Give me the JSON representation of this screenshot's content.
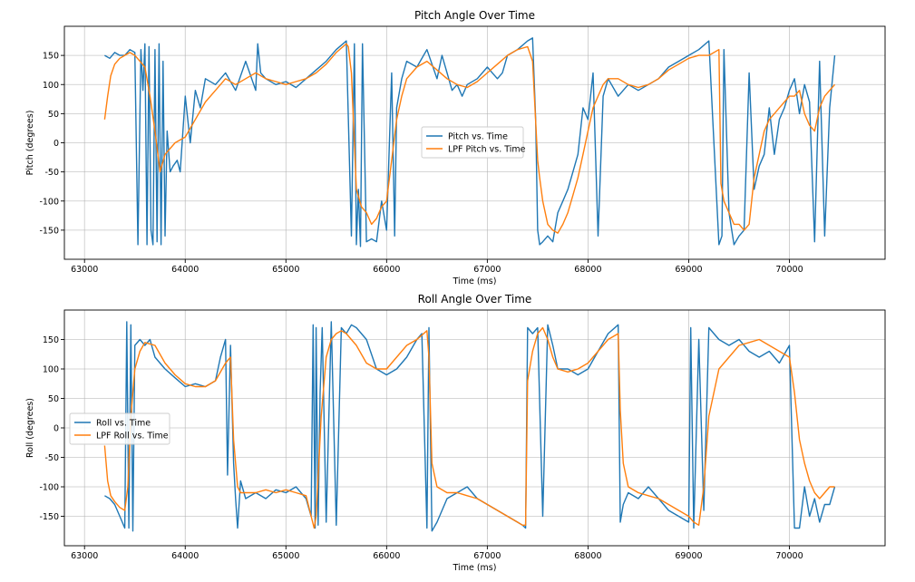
{
  "chart_data": [
    {
      "type": "line",
      "title": "Pitch Angle Over Time",
      "xlabel": "Time (ms)",
      "ylabel": "Pitch (degrees)",
      "xlim": [
        62800,
        70950
      ],
      "ylim": [
        -200,
        200
      ],
      "xticks": [
        63000,
        64000,
        65000,
        66000,
        67000,
        68000,
        69000,
        70000
      ],
      "yticks": [
        -150,
        -100,
        -50,
        0,
        50,
        100,
        150
      ],
      "grid": true,
      "legend": "center",
      "colors": {
        "raw": "#1f77b4",
        "lpf": "#ff7f0e"
      },
      "series": [
        {
          "name": "Pitch vs. Time",
          "x": [
            63200,
            63250,
            63300,
            63350,
            63400,
            63450,
            63500,
            63530,
            63560,
            63580,
            63600,
            63620,
            63640,
            63660,
            63680,
            63700,
            63720,
            63740,
            63760,
            63780,
            63800,
            63820,
            63850,
            63880,
            63920,
            63950,
            64000,
            64050,
            64100,
            64150,
            64200,
            64300,
            64400,
            64500,
            64600,
            64700,
            64720,
            64750,
            64800,
            64900,
            65000,
            65100,
            65200,
            65300,
            65400,
            65500,
            65600,
            65650,
            65680,
            65700,
            65720,
            65740,
            65760,
            65800,
            65850,
            65900,
            65950,
            66000,
            66050,
            66080,
            66100,
            66150,
            66200,
            66300,
            66400,
            66500,
            66550,
            66600,
            66650,
            66700,
            66750,
            66800,
            66900,
            67000,
            67050,
            67100,
            67150,
            67200,
            67300,
            67400,
            67450,
            67480,
            67500,
            67520,
            67550,
            67600,
            67650,
            67700,
            67750,
            67800,
            67850,
            67900,
            67950,
            68000,
            68050,
            68100,
            68150,
            68200,
            68300,
            68400,
            68500,
            68600,
            68700,
            68800,
            68900,
            69000,
            69100,
            69200,
            69300,
            69330,
            69350,
            69400,
            69450,
            69500,
            69550,
            69600,
            69650,
            69700,
            69750,
            69800,
            69850,
            69900,
            69950,
            70000,
            70050,
            70100,
            70150,
            70200,
            70250,
            70300,
            70350,
            70400,
            70450
          ],
          "y": [
            150,
            145,
            155,
            150,
            150,
            160,
            155,
            -175,
            160,
            90,
            170,
            -175,
            165,
            -150,
            -175,
            160,
            -170,
            170,
            -175,
            140,
            -160,
            20,
            -50,
            -40,
            -30,
            -50,
            80,
            0,
            90,
            60,
            110,
            100,
            120,
            90,
            140,
            90,
            170,
            120,
            110,
            100,
            105,
            95,
            110,
            125,
            140,
            160,
            175,
            -160,
            170,
            -175,
            -80,
            -178,
            170,
            -170,
            -165,
            -170,
            -100,
            -150,
            120,
            -160,
            60,
            110,
            140,
            130,
            160,
            110,
            150,
            120,
            90,
            100,
            80,
            100,
            110,
            130,
            120,
            110,
            120,
            150,
            160,
            175,
            180,
            40,
            -150,
            -175,
            -170,
            -160,
            -170,
            -120,
            -100,
            -80,
            -50,
            -20,
            60,
            40,
            120,
            -160,
            80,
            110,
            80,
            100,
            90,
            100,
            110,
            130,
            140,
            150,
            160,
            175,
            -175,
            -160,
            160,
            -120,
            -175,
            -160,
            -150,
            120,
            -80,
            -40,
            -20,
            60,
            -20,
            40,
            60,
            90,
            110,
            50,
            100,
            70,
            -170,
            140,
            -160,
            60,
            150
          ]
        },
        {
          "name": "LPF Pitch vs. Time",
          "x": [
            63200,
            63230,
            63260,
            63300,
            63350,
            63400,
            63450,
            63500,
            63550,
            63600,
            63650,
            63700,
            63750,
            63800,
            63900,
            64000,
            64100,
            64200,
            64300,
            64400,
            64500,
            64600,
            64700,
            64800,
            64900,
            65000,
            65100,
            65200,
            65300,
            65400,
            65500,
            65600,
            65620,
            65650,
            65700,
            65750,
            65800,
            65850,
            65900,
            65950,
            66000,
            66050,
            66100,
            66150,
            66200,
            66300,
            66400,
            66500,
            66600,
            66700,
            66800,
            66900,
            67000,
            67100,
            67200,
            67300,
            67400,
            67450,
            67500,
            67520,
            67550,
            67600,
            67650,
            67700,
            67750,
            67800,
            67850,
            67900,
            67950,
            68000,
            68050,
            68100,
            68150,
            68200,
            68300,
            68400,
            68500,
            68600,
            68700,
            68800,
            68900,
            69000,
            69100,
            69200,
            69300,
            69320,
            69350,
            69400,
            69450,
            69500,
            69550,
            69600,
            69650,
            69700,
            69750,
            69800,
            69850,
            69900,
            69950,
            70000,
            70050,
            70100,
            70150,
            70200,
            70250,
            70300,
            70350,
            70400,
            70450
          ],
          "y": [
            40,
            80,
            115,
            135,
            145,
            150,
            155,
            150,
            140,
            130,
            80,
            20,
            -50,
            -20,
            0,
            10,
            40,
            70,
            90,
            110,
            100,
            110,
            120,
            110,
            105,
            100,
            105,
            110,
            120,
            135,
            155,
            170,
            165,
            120,
            -80,
            -110,
            -120,
            -140,
            -130,
            -110,
            -100,
            -30,
            40,
            80,
            110,
            130,
            140,
            125,
            110,
            100,
            95,
            105,
            120,
            135,
            150,
            160,
            165,
            140,
            -30,
            -60,
            -100,
            -140,
            -150,
            -155,
            -140,
            -120,
            -90,
            -60,
            -20,
            20,
            60,
            80,
            100,
            110,
            110,
            100,
            95,
            100,
            110,
            125,
            135,
            145,
            150,
            150,
            160,
            -70,
            -100,
            -120,
            -140,
            -140,
            -150,
            -140,
            -60,
            -20,
            20,
            40,
            50,
            60,
            70,
            80,
            80,
            90,
            50,
            30,
            20,
            60,
            80,
            90,
            100
          ]
        }
      ]
    },
    {
      "type": "line",
      "title": "Roll Angle Over Time",
      "xlabel": "Time (ms)",
      "ylabel": "Roll (degrees)",
      "xlim": [
        62800,
        70950
      ],
      "ylim": [
        -200,
        200
      ],
      "xticks": [
        63000,
        64000,
        65000,
        66000,
        67000,
        68000,
        69000,
        70000
      ],
      "yticks": [
        -150,
        -100,
        -50,
        0,
        50,
        100,
        150
      ],
      "grid": true,
      "legend": "center-left",
      "colors": {
        "raw": "#1f77b4",
        "lpf": "#ff7f0e"
      },
      "series": [
        {
          "name": "Roll vs. Time",
          "x": [
            63200,
            63250,
            63300,
            63350,
            63400,
            63420,
            63440,
            63460,
            63480,
            63500,
            63550,
            63600,
            63650,
            63700,
            63800,
            63900,
            64000,
            64100,
            64200,
            64300,
            64350,
            64400,
            64420,
            64450,
            64480,
            64500,
            64520,
            64550,
            64600,
            64700,
            64800,
            64900,
            65000,
            65100,
            65200,
            65250,
            65270,
            65290,
            65300,
            65320,
            65340,
            65360,
            65400,
            65450,
            65500,
            65550,
            65600,
            65650,
            65700,
            65800,
            65900,
            66000,
            66100,
            66200,
            66300,
            66350,
            66400,
            66420,
            66450,
            66500,
            66600,
            66700,
            66800,
            66900,
            67000,
            67100,
            67200,
            67300,
            67350,
            67380,
            67400,
            67450,
            67500,
            67550,
            67600,
            67650,
            67700,
            67800,
            67900,
            68000,
            68100,
            68200,
            68300,
            68320,
            68350,
            68400,
            68500,
            68600,
            68700,
            68800,
            68900,
            69000,
            69020,
            69050,
            69100,
            69150,
            69200,
            69300,
            69400,
            69500,
            69600,
            69700,
            69800,
            69900,
            70000,
            70050,
            70100,
            70150,
            70200,
            70250,
            70300,
            70350,
            70400,
            70450
          ],
          "y": [
            -115,
            -120,
            -130,
            -150,
            -170,
            180,
            -170,
            175,
            -175,
            140,
            150,
            140,
            150,
            120,
            100,
            85,
            70,
            75,
            70,
            80,
            120,
            150,
            -80,
            140,
            -60,
            -120,
            -170,
            -90,
            -120,
            -110,
            -120,
            -105,
            -110,
            -100,
            -120,
            -150,
            175,
            -170,
            170,
            -165,
            60,
            170,
            -160,
            180,
            -165,
            170,
            160,
            175,
            170,
            150,
            100,
            90,
            100,
            120,
            150,
            160,
            -170,
            170,
            -175,
            -160,
            -120,
            -110,
            -100,
            -120,
            -130,
            -140,
            -150,
            -160,
            -165,
            -170,
            170,
            160,
            170,
            -150,
            175,
            140,
            100,
            100,
            90,
            100,
            130,
            160,
            175,
            -160,
            -130,
            -110,
            -120,
            -100,
            -120,
            -140,
            -150,
            -160,
            170,
            -170,
            150,
            -140,
            170,
            150,
            140,
            150,
            130,
            120,
            130,
            110,
            140,
            -170,
            -170,
            -100,
            -150,
            -120,
            -160,
            -130,
            -130,
            -100
          ]
        },
        {
          "name": "LPF Roll vs. Time",
          "x": [
            63200,
            63230,
            63260,
            63300,
            63350,
            63400,
            63430,
            63460,
            63500,
            63550,
            63600,
            63700,
            63800,
            63900,
            64000,
            64100,
            64200,
            64300,
            64400,
            64450,
            64480,
            64500,
            64520,
            64550,
            64600,
            64700,
            64800,
            64900,
            65000,
            65100,
            65200,
            65250,
            65280,
            65300,
            65350,
            65400,
            65450,
            65500,
            65550,
            65600,
            65700,
            65800,
            65900,
            66000,
            66100,
            66200,
            66300,
            66400,
            66420,
            66450,
            66500,
            66600,
            66700,
            66800,
            66900,
            67000,
            67100,
            67200,
            67300,
            67350,
            67380,
            67400,
            67450,
            67500,
            67550,
            67600,
            67650,
            67700,
            67800,
            67900,
            68000,
            68100,
            68200,
            68300,
            68320,
            68350,
            68400,
            68500,
            68600,
            68700,
            68800,
            68900,
            69000,
            69050,
            69100,
            69150,
            69200,
            69300,
            69400,
            69500,
            69600,
            69700,
            69800,
            69900,
            70000,
            70050,
            70100,
            70150,
            70200,
            70250,
            70300,
            70350,
            70400,
            70450
          ],
          "y": [
            -30,
            -90,
            -115,
            -125,
            -135,
            -140,
            -100,
            20,
            100,
            130,
            145,
            140,
            110,
            90,
            75,
            70,
            70,
            80,
            110,
            120,
            -20,
            -60,
            -100,
            -110,
            -110,
            -110,
            -105,
            -110,
            -105,
            -110,
            -115,
            -150,
            -170,
            -150,
            20,
            120,
            150,
            160,
            165,
            160,
            140,
            110,
            100,
            100,
            120,
            140,
            150,
            165,
            120,
            -60,
            -100,
            -110,
            -110,
            -115,
            -120,
            -130,
            -140,
            -150,
            -160,
            -165,
            -165,
            80,
            130,
            160,
            170,
            150,
            120,
            100,
            95,
            100,
            110,
            130,
            150,
            160,
            30,
            -60,
            -100,
            -110,
            -115,
            -120,
            -130,
            -140,
            -150,
            -160,
            -165,
            -100,
            20,
            100,
            120,
            140,
            145,
            150,
            140,
            130,
            120,
            60,
            -20,
            -60,
            -90,
            -110,
            -120,
            -110,
            -100,
            -100
          ]
        }
      ]
    }
  ]
}
